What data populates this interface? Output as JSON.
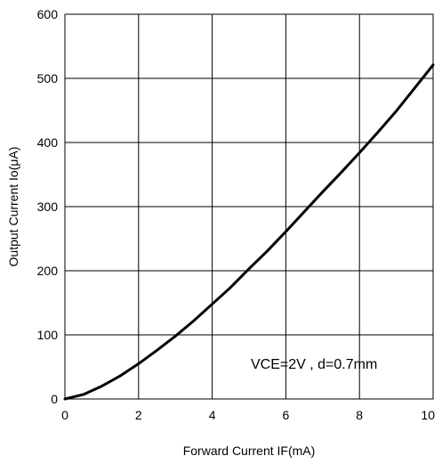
{
  "chart_data": {
    "type": "line",
    "title": "",
    "xlabel": "Forward Current IF(mA)",
    "ylabel": "Output Current Io(μA)",
    "xlim": [
      0,
      10
    ],
    "ylim": [
      0,
      600
    ],
    "x_ticks": [
      0,
      2,
      4,
      6,
      8,
      10
    ],
    "y_ticks": [
      0,
      100,
      200,
      300,
      400,
      500,
      600
    ],
    "x_tick_labels": [
      "0",
      "2",
      "4",
      "6",
      "8",
      "10"
    ],
    "y_tick_labels": [
      "0",
      "100",
      "200",
      "300",
      "400",
      "500",
      "600"
    ],
    "grid": true,
    "annotation": "VCE=2V , d=0.7mm",
    "series": [
      {
        "x": [
          0,
          0.5,
          1,
          1.5,
          2,
          2.5,
          3,
          3.5,
          4,
          4.5,
          5,
          5.5,
          6,
          6.5,
          7,
          7.5,
          8,
          8.5,
          9,
          9.5,
          10
        ],
        "y": [
          0,
          7,
          20,
          36,
          55,
          76,
          98,
          122,
          148,
          174,
          203,
          231,
          261,
          292,
          323,
          353,
          384,
          416,
          449,
          485,
          521
        ]
      }
    ]
  }
}
